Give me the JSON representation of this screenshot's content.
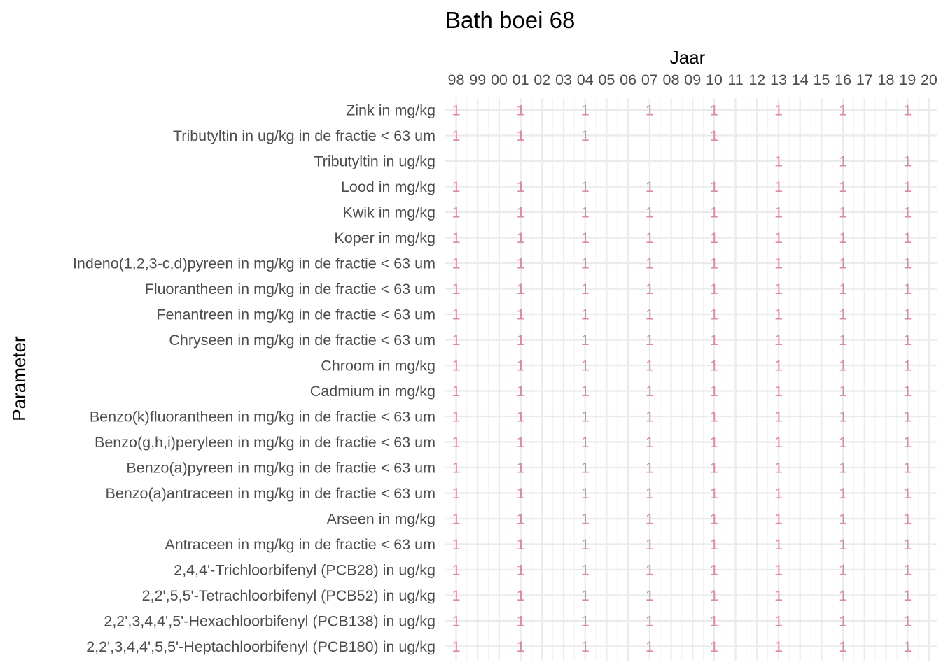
{
  "chart_data": {
    "type": "heatmap",
    "title": "Bath boei 68",
    "xlabel": "Jaar",
    "ylabel": "Parameter",
    "x_axis_position": "top",
    "x_ticks": [
      "98",
      "99",
      "00",
      "01",
      "02",
      "03",
      "04",
      "05",
      "06",
      "07",
      "08",
      "09",
      "10",
      "11",
      "12",
      "13",
      "14",
      "15",
      "16",
      "17",
      "18",
      "19",
      "20"
    ],
    "x_range": [
      1998,
      2020
    ],
    "grid": true,
    "value_label_color": "#d98c9b",
    "parameters": [
      "Zink in mg/kg",
      "Tributyltin in ug/kg in de fractie < 63 um",
      "Tributyltin in ug/kg",
      "Lood in mg/kg",
      "Kwik in mg/kg",
      "Koper in mg/kg",
      "Indeno(1,2,3-c,d)pyreen in mg/kg in de fractie < 63 um",
      "Fluorantheen in mg/kg in de fractie < 63 um",
      "Fenantreen in mg/kg in de fractie < 63 um",
      "Chryseen in mg/kg in de fractie < 63 um",
      "Chroom in mg/kg",
      "Cadmium in mg/kg",
      "Benzo(k)fluorantheen in mg/kg in de fractie < 63 um",
      "Benzo(g,h,i)peryleen in mg/kg in de fractie < 63 um",
      "Benzo(a)pyreen in mg/kg in de fractie < 63 um",
      "Benzo(a)antraceen in mg/kg in de fractie < 63 um",
      "Arseen in mg/kg",
      "Antraceen in mg/kg in de fractie < 63 um",
      "2,4,4'-Trichloorbifenyl (PCB28) in ug/kg",
      "2,2',5,5'-Tetrachloorbifenyl (PCB52) in ug/kg",
      "2,2',3,4,4',5'-Hexachloorbifenyl (PCB138) in ug/kg",
      "2,2',3,4,4',5,5'-Heptachloorbifenyl (PCB180) in ug/kg"
    ],
    "default_years": [
      1998,
      2001,
      2004,
      2007,
      2010,
      2013,
      2016,
      2019
    ],
    "year_overrides": {
      "Tributyltin in ug/kg in de fractie < 63 um": [
        1998,
        2001,
        2004,
        2010
      ],
      "Tributyltin in ug/kg": [
        2013,
        2016,
        2019
      ]
    },
    "cell_value": 1
  }
}
